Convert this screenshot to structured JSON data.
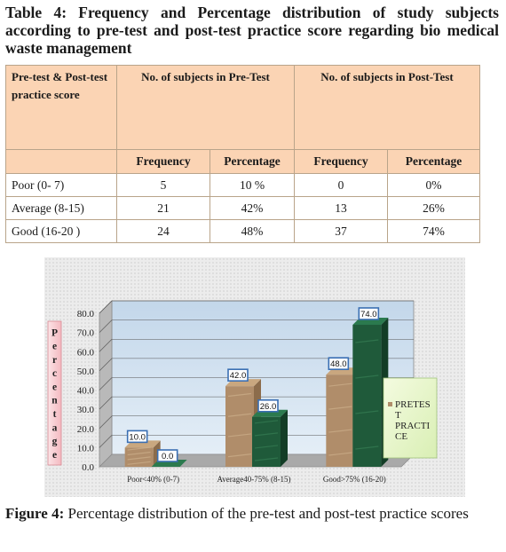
{
  "table": {
    "title": "Table 4: Frequency and Percentage distribution of study subjects according to pre-test and post-test  practice  score regarding bio medical waste management",
    "row_header": "Pre-test & Post-test practice score",
    "pre_header": "No. of subjects in Pre-Test",
    "post_header": "No. of subjects in Post-Test",
    "sub_headers": [
      "Frequency",
      "Percentage",
      "Frequency",
      "Percentage"
    ],
    "rows": [
      {
        "label": "Poor  (0- 7)",
        "pre_freq": "5",
        "pre_pct": "10 %",
        "post_freq": "0",
        "post_pct": "0%"
      },
      {
        "label": "Average  (8-15)",
        "pre_freq": "21",
        "pre_pct": "42%",
        "post_freq": "13",
        "post_pct": "26%"
      },
      {
        "label": "Good     (16-20 )",
        "pre_freq": "24",
        "pre_pct": "48%",
        "post_freq": "37",
        "post_pct": "74%"
      }
    ]
  },
  "caption": {
    "label": "Figure 4:",
    "text": " Percentage distribution of the pre-test and post-test practice scores"
  },
  "chart_data": {
    "type": "bar",
    "categories": [
      "Poor<40% (0-7)",
      "Average40-75% (8-15)",
      "Good>75% (16-20)"
    ],
    "series": [
      {
        "name": "PRETEST PRACTICE",
        "values": [
          10.0,
          42.0,
          48.0
        ],
        "color": "#b08d6a"
      },
      {
        "name": "",
        "values": [
          0.0,
          26.0,
          74.0
        ],
        "color": "#1f5a3a"
      }
    ],
    "data_labels": [
      [
        "10.0",
        "42.0",
        "48.0"
      ],
      [
        "0.0",
        "26.0",
        "74.0"
      ]
    ],
    "ylabel": "Percentage",
    "yticks": [
      "0.0",
      "10.0",
      "20.0",
      "30.0",
      "40.0",
      "50.0",
      "60.0",
      "70.0",
      "80.0"
    ],
    "ylim": [
      0,
      80
    ],
    "legend_position": "right",
    "legend_lines": [
      "PRETES",
      "T",
      "PRACTI",
      "CE"
    ],
    "grid": true
  }
}
